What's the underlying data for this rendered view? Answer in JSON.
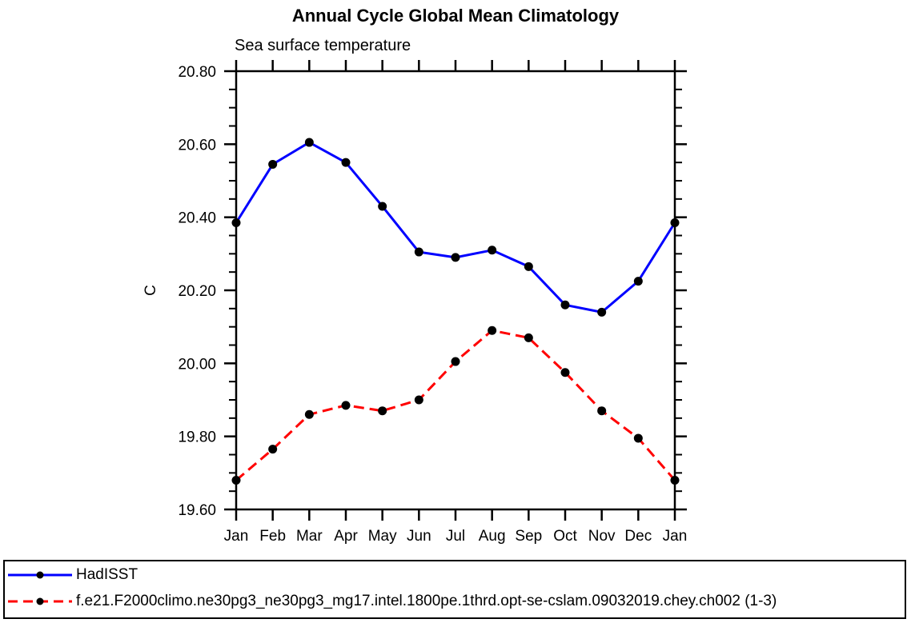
{
  "page": {
    "background": "#ffffff"
  },
  "chart_data": {
    "type": "line",
    "title": "Annual Cycle Global Mean Climatology",
    "subtitle": "Sea surface temperature",
    "ylabel": "C",
    "xlabel": "",
    "categories": [
      "Jan",
      "Feb",
      "Mar",
      "Apr",
      "May",
      "Jun",
      "Jul",
      "Aug",
      "Sep",
      "Oct",
      "Nov",
      "Dec",
      "Jan"
    ],
    "ylim": [
      19.6,
      20.8
    ],
    "ytick_interval": 0.2,
    "ytick_minor_interval": 0.05,
    "ytick_labels": [
      "19.60",
      "19.80",
      "20.00",
      "20.20",
      "20.40",
      "20.60",
      "20.80"
    ],
    "grid": false,
    "axis_color": "#000000",
    "marker_color": "#000000",
    "legend_position": "bottom-outside-box",
    "series": [
      {
        "name": "HadISST",
        "color": "#0000ff",
        "line_style": "solid",
        "marker": "filled-circle",
        "values": [
          20.385,
          20.545,
          20.605,
          20.55,
          20.43,
          20.305,
          20.29,
          20.31,
          20.265,
          20.16,
          20.14,
          20.225,
          20.385
        ]
      },
      {
        "name": "f.e21.F2000climo.ne30pg3_ne30pg3_mg17.intel.1800pe.1thrd.opt-se-cslam.09032019.chey.ch002 (1-3)",
        "color": "#ff0000",
        "line_style": "dashed",
        "marker": "filled-circle",
        "values": [
          19.68,
          19.765,
          19.86,
          19.885,
          19.87,
          19.9,
          20.005,
          20.09,
          20.07,
          19.975,
          19.87,
          19.795,
          19.68
        ]
      }
    ]
  }
}
